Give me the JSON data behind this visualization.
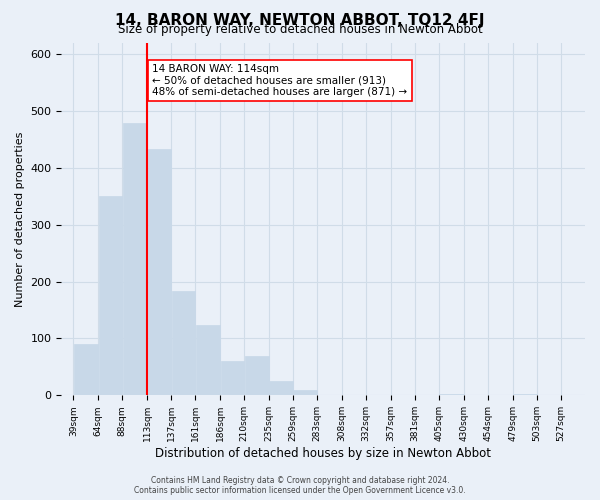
{
  "title": "14, BARON WAY, NEWTON ABBOT, TQ12 4FJ",
  "subtitle": "Size of property relative to detached houses in Newton Abbot",
  "xlabel": "Distribution of detached houses by size in Newton Abbot",
  "ylabel": "Number of detached properties",
  "bar_color": "#c8d8e8",
  "bar_edge_color": "#c8d8e8",
  "vline_x": 113,
  "vline_color": "red",
  "annotation_text": "14 BARON WAY: 114sqm\n← 50% of detached houses are smaller (913)\n48% of semi-detached houses are larger (871) →",
  "annotation_box_color": "white",
  "annotation_box_edge": "red",
  "footer1": "Contains HM Land Registry data © Crown copyright and database right 2024.",
  "footer2": "Contains public sector information licensed under the Open Government Licence v3.0.",
  "ylim": [
    0,
    620
  ],
  "bar_left_edges": [
    39,
    64,
    88,
    113,
    137,
    161,
    186,
    210,
    235,
    259,
    283,
    308,
    332,
    357,
    381,
    405,
    430,
    454,
    479,
    503
  ],
  "bar_widths": [
    25,
    24,
    25,
    24,
    24,
    25,
    24,
    25,
    24,
    24,
    25,
    24,
    25,
    25,
    24,
    25,
    24,
    25,
    24,
    24
  ],
  "bar_heights": [
    90,
    350,
    478,
    433,
    183,
    124,
    60,
    70,
    25,
    10,
    0,
    0,
    0,
    0,
    0,
    3,
    0,
    0,
    3,
    0
  ],
  "xtick_labels": [
    "39sqm",
    "64sqm",
    "88sqm",
    "113sqm",
    "137sqm",
    "161sqm",
    "186sqm",
    "210sqm",
    "235sqm",
    "259sqm",
    "283sqm",
    "308sqm",
    "332sqm",
    "357sqm",
    "381sqm",
    "405sqm",
    "430sqm",
    "454sqm",
    "479sqm",
    "503sqm",
    "527sqm"
  ],
  "xtick_positions": [
    39,
    64,
    88,
    113,
    137,
    161,
    186,
    210,
    235,
    259,
    283,
    308,
    332,
    357,
    381,
    405,
    430,
    454,
    479,
    503,
    527
  ],
  "grid_color": "#d0dce8",
  "background_color": "#eaf0f8"
}
